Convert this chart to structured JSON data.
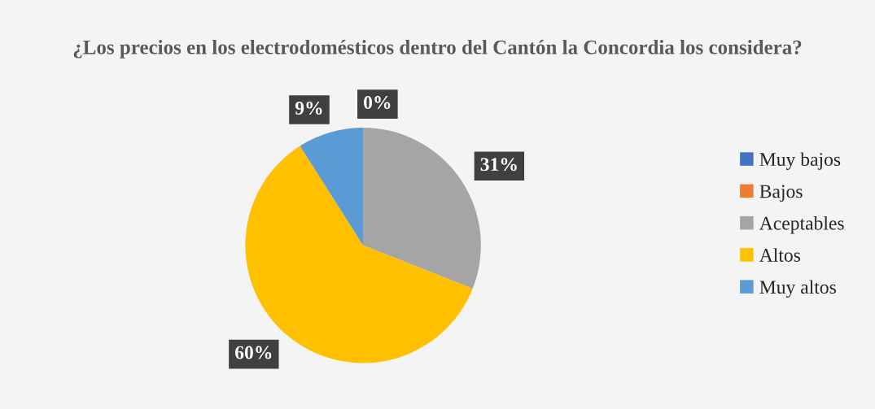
{
  "chart_data": {
    "type": "pie",
    "title": "¿Los precios en los electrodomésticos dentro del Cantón la Concordia los considera?",
    "categories": [
      "Muy bajos",
      "Bajos",
      "Aceptables",
      "Altos",
      "Muy altos"
    ],
    "values": [
      0,
      0,
      31,
      60,
      9
    ],
    "colors": [
      "#4472c4",
      "#ed7d31",
      "#a5a5a5",
      "#ffc000",
      "#5b9bd5"
    ],
    "value_labels": [
      "0%",
      null,
      "31%",
      "60%",
      "9%"
    ],
    "legend": "right"
  }
}
